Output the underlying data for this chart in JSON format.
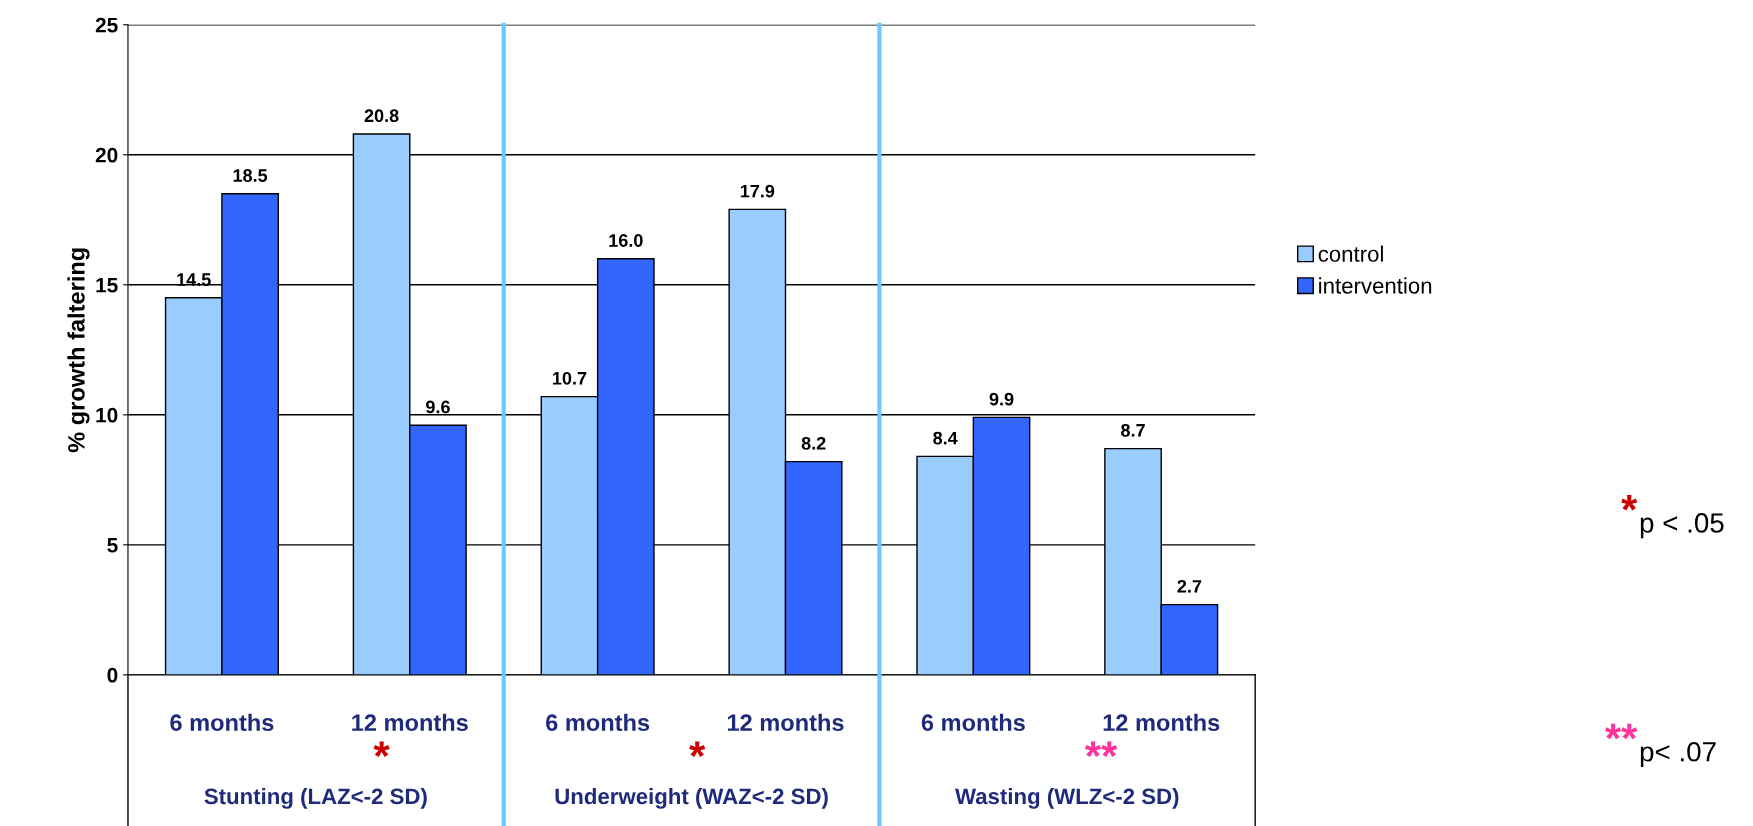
{
  "chart_data": {
    "type": "bar",
    "ylabel": "% growth faltering",
    "categories": [
      "6 months",
      "12 months",
      "6 months",
      "12 months",
      "6 months",
      "12 months"
    ],
    "series": [
      {
        "name": "control",
        "color": "#99ccff",
        "values": [
          14.5,
          20.8,
          10.7,
          17.9,
          8.4,
          8.7
        ]
      },
      {
        "name": "intervention",
        "color": "#3366ff",
        "values": [
          18.5,
          9.6,
          16.0,
          8.2,
          9.9,
          2.7
        ]
      }
    ],
    "value_labels": [
      [
        "14.5",
        "20.8",
        "10.7",
        "17.9",
        "8.4",
        "8.7"
      ],
      [
        "18.5",
        "9.6",
        "16.0",
        "8.2",
        "9.9",
        "2.7"
      ]
    ],
    "ylim": [
      0,
      25
    ],
    "yticks": [
      0,
      5,
      10,
      15,
      20,
      25
    ],
    "grid": "y",
    "legend": "right",
    "annotations": [
      "Stunting (LAZ<-2 SD)",
      "Underweight (WAZ<-2 SD)",
      "Wasting (WLZ<-2 SD)",
      "*",
      "*",
      "**",
      "* p < .05",
      "** p< .07"
    ]
  }
}
